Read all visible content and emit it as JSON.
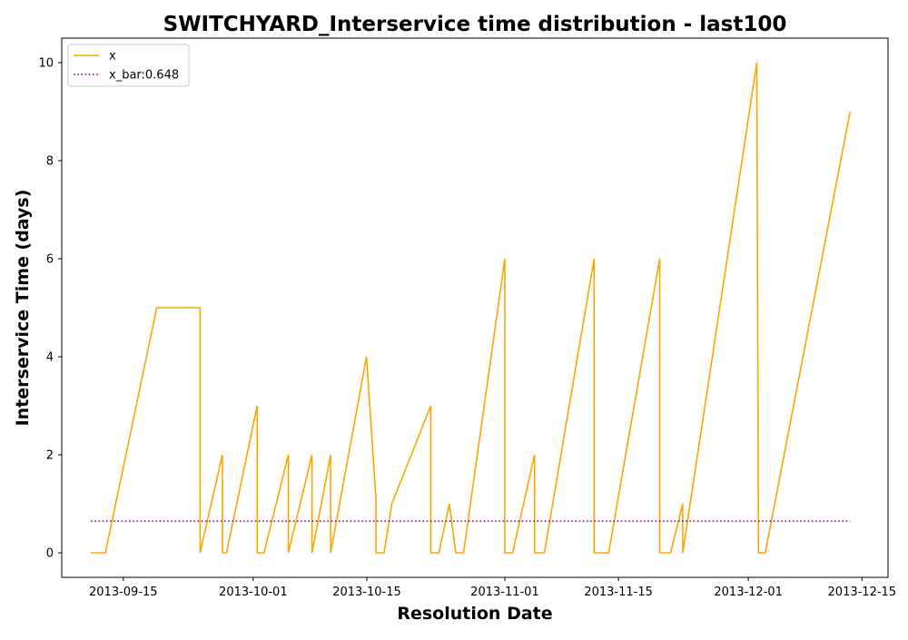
{
  "chart_data": {
    "type": "line",
    "title": "SWITCHYARD_Interservice time distribution - last100",
    "xlabel": "Resolution Date",
    "ylabel": "Interservice Time (days)",
    "x_ticks": [
      "2013-09-15",
      "2013-10-01",
      "2013-10-15",
      "2013-11-01",
      "2013-11-15",
      "2013-12-01",
      "2013-12-15"
    ],
    "y_ticks": [
      "0",
      "2",
      "4",
      "6",
      "8",
      "10"
    ],
    "xlim": [
      "2013-09-07T10:00",
      "2013-12-18T05:00"
    ],
    "ylim": [
      -0.5,
      10.5
    ],
    "grid": false,
    "legend_position": "top-left",
    "series": [
      {
        "name": "x",
        "color": "#FFA500",
        "style": "solid",
        "points": [
          [
            "2013-09-11T00:00",
            0
          ],
          [
            "2013-09-12T19:00",
            0
          ],
          [
            "2013-09-19T03:00",
            5
          ],
          [
            "2013-09-24T11:00",
            5
          ],
          [
            "2013-09-24T11:00",
            0
          ],
          [
            "2013-09-27T05:00",
            2
          ],
          [
            "2013-09-27T05:00",
            0
          ],
          [
            "2013-09-27T17:00",
            0
          ],
          [
            "2013-10-01T12:00",
            3
          ],
          [
            "2013-10-01T12:00",
            0
          ],
          [
            "2013-10-02T08:00",
            0
          ],
          [
            "2013-10-05T08:00",
            2
          ],
          [
            "2013-10-05T08:00",
            0
          ],
          [
            "2013-10-08T06:00",
            2
          ],
          [
            "2013-10-08T06:00",
            0
          ],
          [
            "2013-10-10T13:00",
            2
          ],
          [
            "2013-10-10T13:00",
            0
          ],
          [
            "2013-10-14T23:00",
            4
          ],
          [
            "2013-10-16T03:00",
            1.1
          ],
          [
            "2013-10-16T03:00",
            0
          ],
          [
            "2013-10-17T03:00",
            0
          ],
          [
            "2013-10-18T02:00",
            1
          ],
          [
            "2013-10-22T21:00",
            3
          ],
          [
            "2013-10-22T21:00",
            0
          ],
          [
            "2013-10-23T21:00",
            0
          ],
          [
            "2013-10-25T04:00",
            1
          ],
          [
            "2013-10-25T23:00",
            0
          ],
          [
            "2013-10-26T22:00",
            0
          ],
          [
            "2013-11-01T00:00",
            6
          ],
          [
            "2013-11-01T00:00",
            0
          ],
          [
            "2013-11-01T23:00",
            0
          ],
          [
            "2013-11-04T16:00",
            2
          ],
          [
            "2013-11-04T16:00",
            0
          ],
          [
            "2013-11-05T21:00",
            0
          ],
          [
            "2013-11-12T00:00",
            6
          ],
          [
            "2013-11-12T00:00",
            0
          ],
          [
            "2013-11-13T19:00",
            0
          ],
          [
            "2013-11-20T02:00",
            6
          ],
          [
            "2013-11-20T02:00",
            0
          ],
          [
            "2013-11-21T10:00",
            0
          ],
          [
            "2013-11-22T22:00",
            1
          ],
          [
            "2013-11-22T22:00",
            0
          ],
          [
            "2013-12-02T01:00",
            10
          ],
          [
            "2013-12-02T06:00",
            0
          ],
          [
            "2013-12-03T02:00",
            0
          ],
          [
            "2013-12-13T13:00",
            9
          ]
        ]
      },
      {
        "name": "x_bar:0.648",
        "color": "#800080",
        "style": "dotted",
        "points": [
          [
            "2013-09-11T00:00",
            0.648
          ],
          [
            "2013-12-13T13:00",
            0.648
          ]
        ]
      }
    ]
  }
}
